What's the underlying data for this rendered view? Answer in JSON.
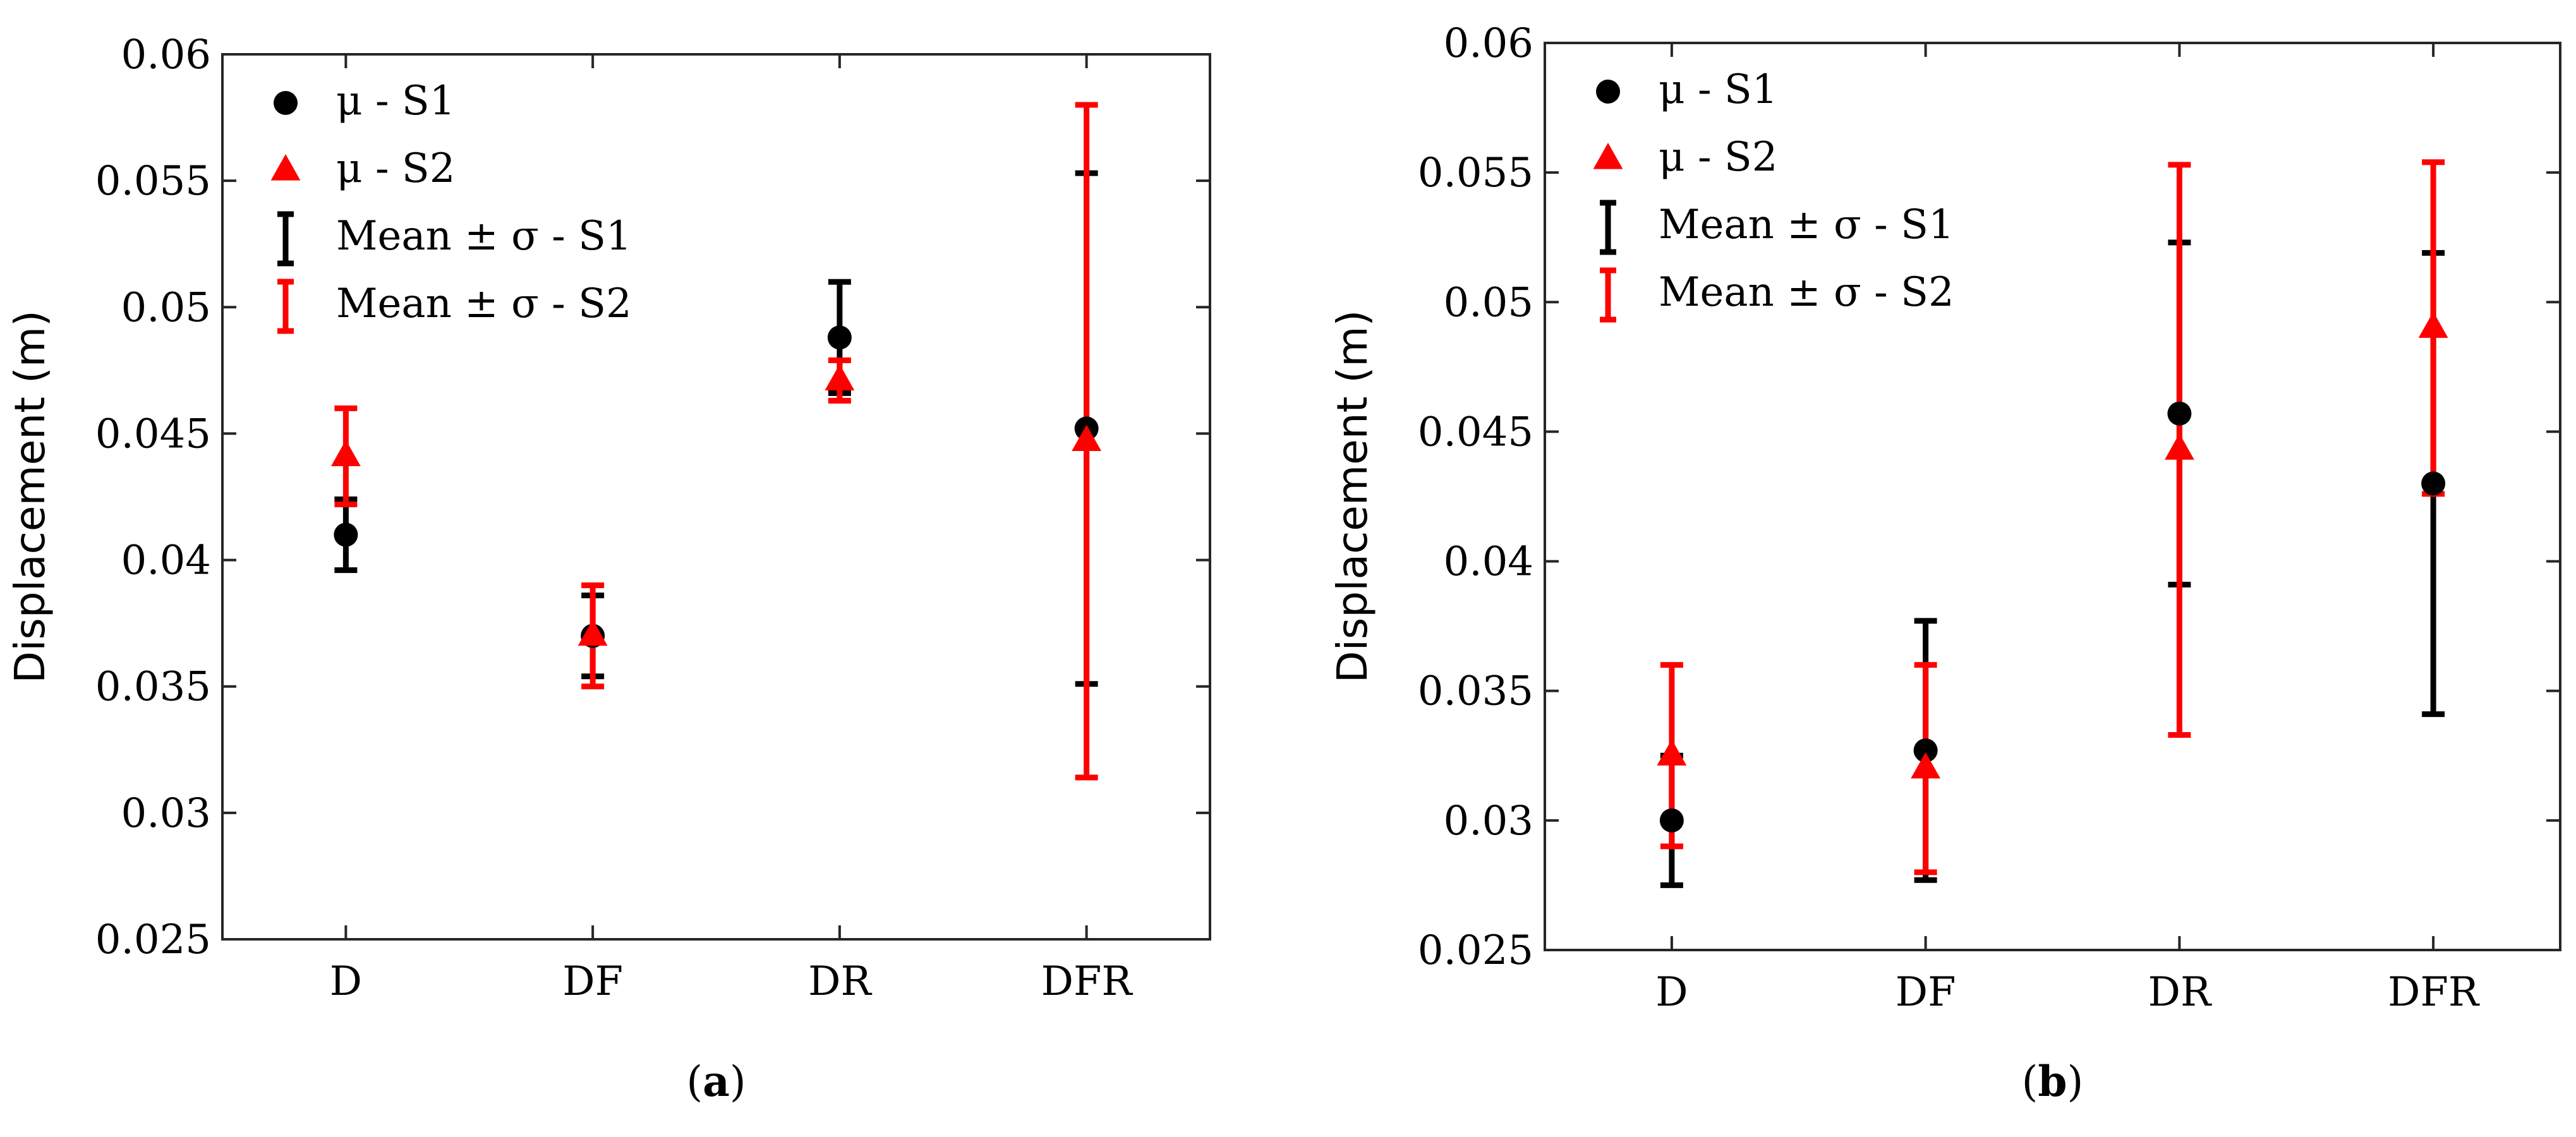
{
  "chart_data": [
    {
      "type": "scatter",
      "panel_label": "a",
      "title": "",
      "xlabel": "",
      "ylabel": "Displacement (m)",
      "categories": [
        "D",
        "DF",
        "DR",
        "DFR"
      ],
      "ylim": [
        0.025,
        0.06
      ],
      "yticks": [
        0.025,
        0.03,
        0.035,
        0.04,
        0.045,
        0.05,
        0.055,
        0.06
      ],
      "ytick_labels": [
        "0.025",
        "0.03",
        "0.035",
        "0.04",
        "0.045",
        "0.05",
        "0.055",
        "0.06"
      ],
      "grid": false,
      "legend_position": "top-left",
      "legend": [
        "μ - S1",
        "μ - S2",
        "Mean ± σ - S1",
        "Mean ± σ - S2"
      ],
      "series": [
        {
          "name": "μ - S1",
          "marker": "circle",
          "color": "#000000",
          "values": [
            0.041,
            0.037,
            0.0488,
            0.0452
          ],
          "std": [
            0.0014,
            0.0016,
            0.0022,
            0.0101
          ]
        },
        {
          "name": "μ - S2",
          "marker": "triangle",
          "color": "#ff0000",
          "values": [
            0.0441,
            0.037,
            0.0471,
            0.0447
          ],
          "std": [
            0.0019,
            0.002,
            0.0008,
            0.0133
          ]
        }
      ]
    },
    {
      "type": "scatter",
      "panel_label": "b",
      "title": "",
      "xlabel": "",
      "ylabel": "Displacement (m)",
      "categories": [
        "D",
        "DF",
        "DR",
        "DFR"
      ],
      "ylim": [
        0.025,
        0.06
      ],
      "yticks": [
        0.025,
        0.03,
        0.035,
        0.04,
        0.045,
        0.05,
        0.055,
        0.06
      ],
      "ytick_labels": [
        "0.025",
        "0.03",
        "0.035",
        "0.04",
        "0.045",
        "0.05",
        "0.055",
        "0.06"
      ],
      "grid": false,
      "legend_position": "top-left",
      "legend": [
        "μ - S1",
        "μ - S2",
        "Mean ± σ - S1",
        "Mean ± σ - S2"
      ],
      "series": [
        {
          "name": "μ - S1",
          "marker": "circle",
          "color": "#000000",
          "values": [
            0.03,
            0.0327,
            0.0457,
            0.043
          ],
          "std": [
            0.0025,
            0.005,
            0.0066,
            0.0089
          ]
        },
        {
          "name": "μ - S2",
          "marker": "triangle",
          "color": "#ff0000",
          "values": [
            0.0325,
            0.032,
            0.0443,
            0.049
          ],
          "std": [
            0.0035,
            0.004,
            0.011,
            0.0064
          ]
        }
      ]
    }
  ]
}
